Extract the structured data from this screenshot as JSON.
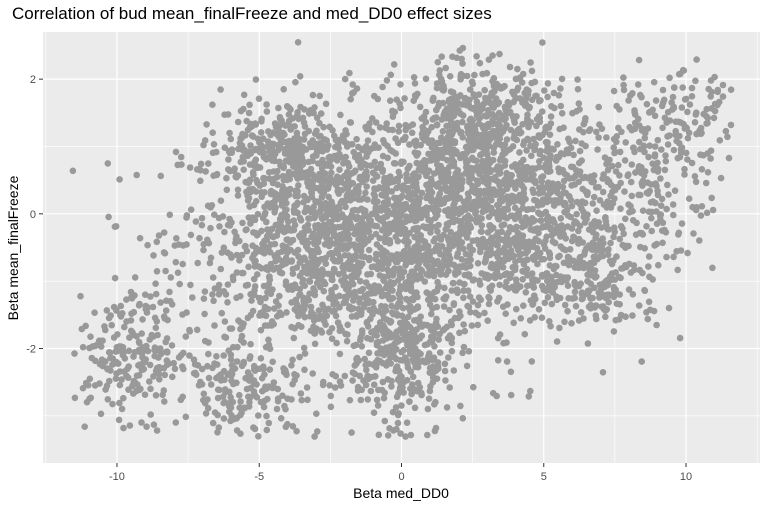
{
  "chart_data": {
    "type": "scatter",
    "title": "Correlation of bud mean_finalFreeze and med_DD0 effect sizes",
    "xlabel": "Beta med_DD0",
    "ylabel": "Beta mean_finalFreeze",
    "xlim": [
      -12.6,
      12.6
    ],
    "ylim": [
      -3.7,
      2.7
    ],
    "x_ticks": [
      -10,
      -5,
      0,
      5,
      10
    ],
    "y_ticks": [
      -2,
      0,
      2
    ],
    "x_tick_labels": [
      "-10",
      "-5",
      "0",
      "5",
      "10"
    ],
    "y_tick_labels": [
      "-2",
      "0",
      "2"
    ],
    "grid": true,
    "legend": "none",
    "point_color": "#999999",
    "panel_background": "#ebebeb",
    "grid_color": "#ffffff",
    "clusters": [
      {
        "x": -2.5,
        "y": -0.4,
        "sx": 2.6,
        "sy": 0.9,
        "n": 1500
      },
      {
        "x": 3.0,
        "y": 0.1,
        "sx": 2.4,
        "sy": 0.9,
        "n": 1500
      },
      {
        "x": -9.5,
        "y": -2.1,
        "sx": 1.1,
        "sy": 0.45,
        "n": 220
      },
      {
        "x": 0.0,
        "y": -2.1,
        "sx": 0.9,
        "sy": 0.65,
        "n": 320
      },
      {
        "x": 9.0,
        "y": 0.8,
        "sx": 1.3,
        "sy": 0.6,
        "n": 220
      },
      {
        "x": -4.0,
        "y": 1.0,
        "sx": 1.2,
        "sy": 0.3,
        "n": 220
      },
      {
        "x": 2.5,
        "y": 1.4,
        "sx": 1.3,
        "sy": 0.45,
        "n": 260
      },
      {
        "x": -5.5,
        "y": -2.6,
        "sx": 1.3,
        "sy": 0.35,
        "n": 160
      },
      {
        "x": 7.0,
        "y": -1.0,
        "sx": 1.1,
        "sy": 0.4,
        "n": 160
      },
      {
        "x": 10.5,
        "y": 1.5,
        "sx": 0.7,
        "sy": 0.3,
        "n": 60
      }
    ]
  }
}
